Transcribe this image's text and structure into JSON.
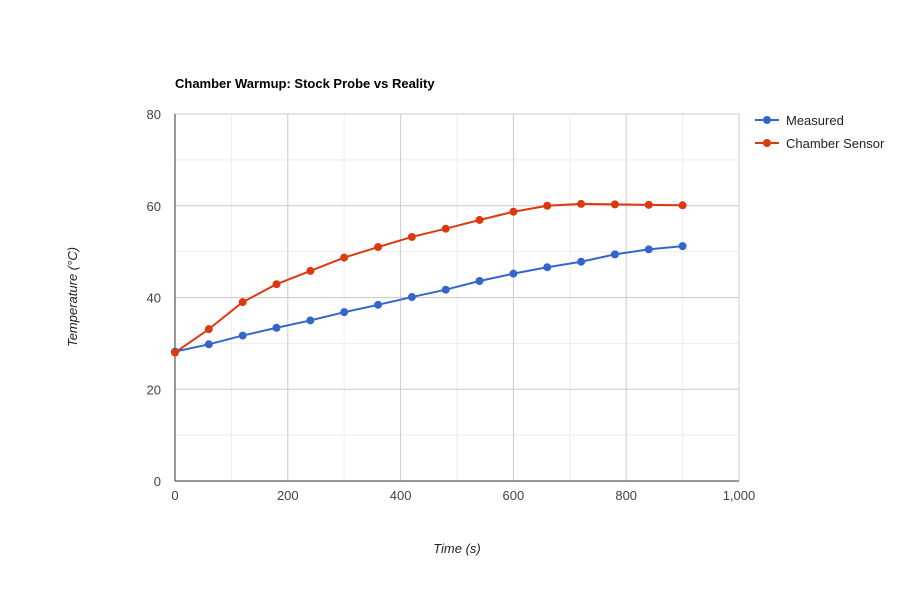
{
  "chart_data": {
    "type": "line",
    "title": "Chamber Warmup: Stock Probe vs Reality",
    "xlabel": "Time (s)",
    "ylabel": "Temperature (°C)",
    "xlim": [
      0,
      1000
    ],
    "ylim": [
      0,
      80
    ],
    "x_ticks": [
      0,
      200,
      400,
      600,
      800,
      1000
    ],
    "x_tick_labels": [
      "0",
      "200",
      "400",
      "600",
      "800",
      "1,000"
    ],
    "y_ticks": [
      0,
      20,
      40,
      60,
      80
    ],
    "y_tick_labels": [
      "0",
      "20",
      "40",
      "60",
      "80"
    ],
    "grid": true,
    "legend_position": "right",
    "x": [
      0,
      60,
      120,
      180,
      240,
      300,
      360,
      420,
      480,
      540,
      600,
      660,
      720,
      780,
      840,
      900
    ],
    "series": [
      {
        "name": "Measured",
        "color": "#3366cc",
        "values": [
          28.2,
          29.8,
          31.7,
          33.4,
          35.0,
          36.8,
          38.4,
          40.1,
          41.7,
          43.6,
          45.2,
          46.6,
          47.8,
          49.4,
          50.5,
          51.2
        ]
      },
      {
        "name": "Chamber Sensor",
        "color": "#dc3912",
        "values": [
          28.0,
          33.1,
          39.0,
          42.9,
          45.8,
          48.7,
          51.0,
          53.2,
          55.0,
          56.9,
          58.7,
          60.0,
          60.4,
          60.3,
          60.2,
          60.1
        ]
      }
    ]
  }
}
